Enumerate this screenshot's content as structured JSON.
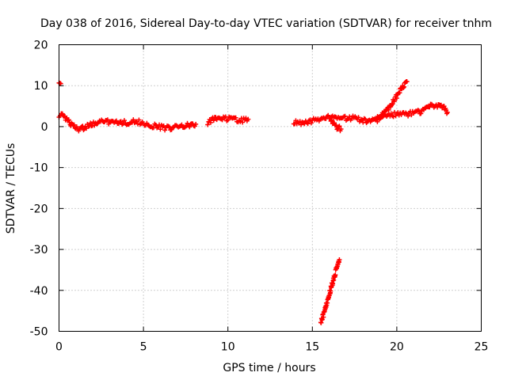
{
  "chart_data": {
    "type": "scatter",
    "title": "Day 038 of 2016, Sidereal Day-to-day VTEC variation (SDTVAR) for receiver tnhm",
    "xlabel": "GPS time / hours",
    "ylabel": "SDTVAR / TECUs",
    "xlim": [
      0,
      25
    ],
    "ylim": [
      -50,
      20
    ],
    "xticks": [
      "0",
      "5",
      "10",
      "15",
      "20",
      "25"
    ],
    "yticks": [
      "20",
      "10",
      "0",
      "-10",
      "-20",
      "-30",
      "-40",
      "-50"
    ],
    "grid": true,
    "color": "#ff0000",
    "series": [
      {
        "segments": [
          [
            [
              0.0,
              10.6
            ],
            [
              0.1,
              10.5
            ]
          ],
          [
            [
              0.0,
              2.8
            ],
            [
              0.2,
              2.6
            ],
            [
              0.35,
              2.4
            ],
            [
              0.5,
              1.5
            ],
            [
              0.7,
              0.5
            ],
            [
              0.9,
              0.0
            ],
            [
              1.1,
              -0.6
            ],
            [
              1.3,
              -0.5
            ],
            [
              1.5,
              -0.2
            ],
            [
              1.8,
              0.4
            ],
            [
              2.1,
              0.8
            ],
            [
              2.4,
              1.0
            ],
            [
              2.7,
              1.2
            ],
            [
              3.0,
              1.1
            ],
            [
              3.4,
              0.9
            ],
            [
              3.8,
              1.0
            ],
            [
              4.2,
              1.1
            ],
            [
              4.6,
              1.2
            ],
            [
              5.0,
              0.8
            ],
            [
              5.4,
              0.4
            ],
            [
              5.8,
              0.0
            ],
            [
              6.2,
              -0.3
            ],
            [
              6.6,
              -0.4
            ],
            [
              7.0,
              -0.2
            ],
            [
              7.4,
              0.1
            ],
            [
              7.8,
              0.4
            ],
            [
              8.1,
              0.6
            ]
          ],
          [
            [
              8.8,
              1.0
            ],
            [
              9.1,
              1.7
            ],
            [
              9.4,
              2.0
            ],
            [
              9.8,
              1.9
            ],
            [
              10.2,
              1.8
            ],
            [
              10.6,
              1.6
            ],
            [
              11.0,
              1.6
            ],
            [
              11.2,
              1.8
            ]
          ],
          [
            [
              13.9,
              1.1
            ],
            [
              14.2,
              1.0
            ],
            [
              14.6,
              1.1
            ],
            [
              15.0,
              1.4
            ],
            [
              15.4,
              1.8
            ],
            [
              15.8,
              2.2
            ],
            [
              16.2,
              2.2
            ],
            [
              16.6,
              2.0
            ],
            [
              17.0,
              2.0
            ],
            [
              17.4,
              2.1
            ],
            [
              17.8,
              1.8
            ],
            [
              18.2,
              1.4
            ],
            [
              18.5,
              1.2
            ],
            [
              18.8,
              1.8
            ],
            [
              19.2,
              2.7
            ],
            [
              19.6,
              3.0
            ],
            [
              20.0,
              3.0
            ],
            [
              20.4,
              3.0
            ],
            [
              20.8,
              3.2
            ],
            [
              21.2,
              3.4
            ],
            [
              21.6,
              4.0
            ],
            [
              22.0,
              5.0
            ],
            [
              22.4,
              5.2
            ],
            [
              22.8,
              4.5
            ],
            [
              23.0,
              3.5
            ]
          ],
          [
            [
              16.1,
              1.4
            ],
            [
              16.3,
              0.6
            ],
            [
              16.5,
              -0.3
            ],
            [
              16.7,
              -0.6
            ]
          ],
          [
            [
              18.8,
              1.5
            ],
            [
              19.2,
              3.0
            ],
            [
              19.6,
              5.0
            ],
            [
              20.0,
              7.5
            ],
            [
              20.3,
              9.5
            ],
            [
              20.6,
              11.0
            ]
          ],
          [
            [
              15.5,
              -47.8
            ],
            [
              15.7,
              -45.5
            ],
            [
              15.9,
              -42.5
            ],
            [
              16.1,
              -39.5
            ],
            [
              16.3,
              -36.5
            ],
            [
              16.6,
              -32.5
            ]
          ]
        ]
      }
    ]
  }
}
